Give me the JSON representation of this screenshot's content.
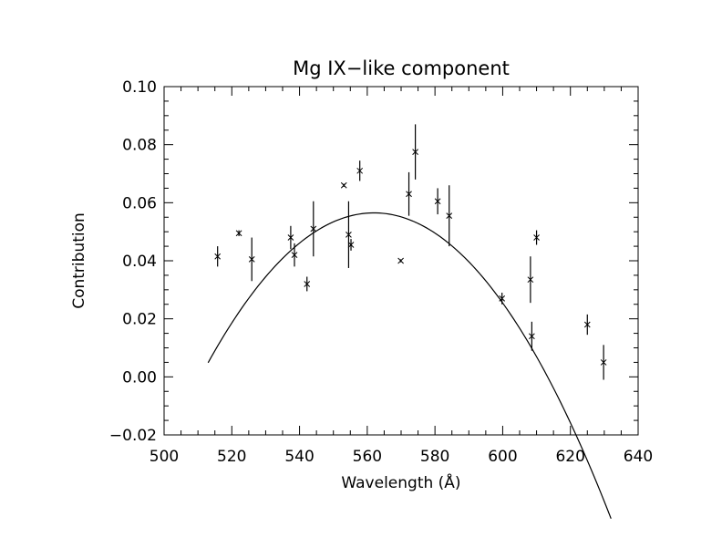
{
  "chart_data": {
    "type": "scatter",
    "title": "Mg IX−like component",
    "xlabel": "Wavelength (Å)",
    "ylabel": "Contribution",
    "xlim": [
      500,
      640
    ],
    "ylim": [
      -0.02,
      0.1
    ],
    "x_ticks": [
      500,
      520,
      540,
      560,
      580,
      600,
      620,
      640
    ],
    "x_tick_labels": [
      "500",
      "520",
      "540",
      "560",
      "580",
      "600",
      "620",
      "640"
    ],
    "y_ticks": [
      -0.02,
      0.0,
      0.02,
      0.04,
      0.06,
      0.08,
      0.1
    ],
    "y_tick_labels": [
      "−0.02",
      "0.00",
      "0.02",
      "0.04",
      "0.06",
      "0.08",
      "0.10"
    ],
    "grid": false,
    "legend": "none",
    "line_color": "#000000",
    "series": [
      {
        "kind": "points_with_errorbars",
        "marker": "x",
        "points": [
          {
            "x": 515.8,
            "y": 0.0415,
            "err": 0.0035
          },
          {
            "x": 522.1,
            "y": 0.0495,
            "err": 0.001
          },
          {
            "x": 525.9,
            "y": 0.0405,
            "err": 0.0075
          },
          {
            "x": 537.4,
            "y": 0.048,
            "err": 0.004
          },
          {
            "x": 538.5,
            "y": 0.042,
            "err": 0.004
          },
          {
            "x": 542.2,
            "y": 0.032,
            "err": 0.0025
          },
          {
            "x": 544.1,
            "y": 0.051,
            "err": 0.0095
          },
          {
            "x": 553.1,
            "y": 0.066,
            "err": 0.0005
          },
          {
            "x": 554.5,
            "y": 0.049,
            "err": 0.0115
          },
          {
            "x": 555.2,
            "y": 0.0455,
            "err": 0.002
          },
          {
            "x": 557.8,
            "y": 0.071,
            "err": 0.0035
          },
          {
            "x": 569.9,
            "y": 0.04,
            "err": 0.0005
          },
          {
            "x": 572.3,
            "y": 0.063,
            "err": 0.0075
          },
          {
            "x": 574.2,
            "y": 0.0775,
            "err": 0.0095
          },
          {
            "x": 580.8,
            "y": 0.0605,
            "err": 0.0045
          },
          {
            "x": 584.2,
            "y": 0.0555,
            "err": 0.0105
          },
          {
            "x": 599.8,
            "y": 0.027,
            "err": 0.002
          },
          {
            "x": 608.2,
            "y": 0.0335,
            "err": 0.008
          },
          {
            "x": 608.6,
            "y": 0.014,
            "err": 0.005
          },
          {
            "x": 610.0,
            "y": 0.048,
            "err": 0.0025
          },
          {
            "x": 625.0,
            "y": 0.018,
            "err": 0.0035
          },
          {
            "x": 629.8,
            "y": 0.005,
            "err": 0.006
          }
        ]
      },
      {
        "kind": "curve",
        "x_range": [
          513,
          632
        ],
        "peak_x": 562.0,
        "peak_y": 0.0565,
        "curvature": 2.15e-05
      }
    ]
  }
}
